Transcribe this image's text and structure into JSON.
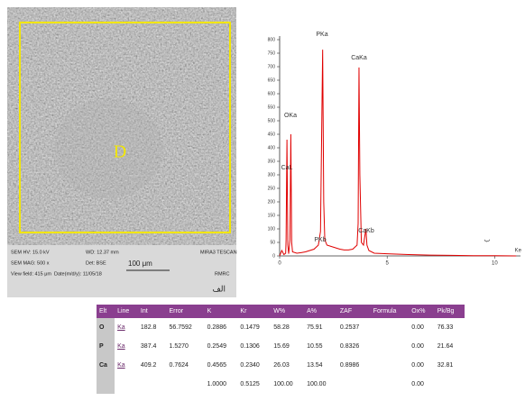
{
  "sem_image": {
    "label": "D",
    "info": [
      "SEM HV: 15.0 kV",
      "WD: 12.37 mm",
      "MIRA3 TESCAN",
      "SEM MAG: 500 x",
      "Det: BSE",
      "View field: 415 μm",
      "Date(m/d/y): 11/05/18",
      "RMRC"
    ],
    "scale_bar": "100 μm",
    "caption": "الف"
  },
  "chart_data": {
    "type": "line",
    "x": [
      0,
      0.1,
      0.2,
      0.28,
      0.3,
      0.34,
      0.38,
      0.42,
      0.48,
      0.52,
      0.56,
      0.6,
      0.8,
      1.0,
      1.2,
      1.4,
      1.6,
      1.8,
      1.9,
      2.0,
      2.05,
      2.1,
      2.2,
      2.4,
      2.6,
      2.8,
      3.0,
      3.2,
      3.4,
      3.6,
      3.65,
      3.69,
      3.73,
      3.8,
      3.9,
      4.01,
      4.06,
      4.15,
      4.4,
      5,
      6,
      7,
      8,
      9,
      10,
      11
    ],
    "values": [
      0,
      20,
      5,
      10,
      60,
      430,
      40,
      8,
      60,
      450,
      50,
      15,
      10,
      12,
      15,
      20,
      25,
      40,
      90,
      763,
      200,
      60,
      40,
      35,
      30,
      25,
      22,
      22,
      25,
      40,
      120,
      697,
      300,
      50,
      40,
      100,
      40,
      20,
      10,
      8,
      5,
      3,
      2,
      1,
      1,
      0
    ],
    "color": "#e00000",
    "xlim": [
      0,
      11.2
    ],
    "xticks": [
      0,
      5,
      10
    ],
    "x_label": "Ke",
    "ylim": [
      0,
      800
    ],
    "yticks": [
      0,
      50,
      100,
      150,
      200,
      250,
      300,
      350,
      400,
      450,
      500,
      550,
      600,
      650,
      700,
      750,
      800
    ],
    "annotations": [
      "PKa",
      "CaKa",
      "OKa",
      "CaL",
      "PKb",
      "CaKb",
      "ب"
    ]
  },
  "table": {
    "header": [
      "Elt",
      "Line",
      "Int",
      "Error",
      "K",
      "Kr",
      "W%",
      "A%",
      "ZAF",
      "Formula",
      "Ox%",
      "Pk/Bg"
    ],
    "rows": [
      [
        "O",
        "Ka",
        "182.8",
        "56.7592",
        "0.2886",
        "0.1479",
        "58.28",
        "75.91",
        "0.2537",
        null,
        "0.00",
        "76.33"
      ],
      [
        "P",
        "Ka",
        "387.4",
        "1.5270",
        "0.2549",
        "0.1306",
        "15.69",
        "10.55",
        "0.8326",
        null,
        "0.00",
        "21.64"
      ],
      [
        "Ca",
        "Ka",
        "409.2",
        "0.7624",
        "0.4565",
        "0.2340",
        "26.03",
        "13.54",
        "0.8986",
        null,
        "0.00",
        "32.81"
      ],
      [
        null,
        null,
        null,
        null,
        "1.0000",
        "0.5125",
        "100.00",
        "100.00",
        null,
        null,
        "0.00",
        null
      ]
    ]
  }
}
